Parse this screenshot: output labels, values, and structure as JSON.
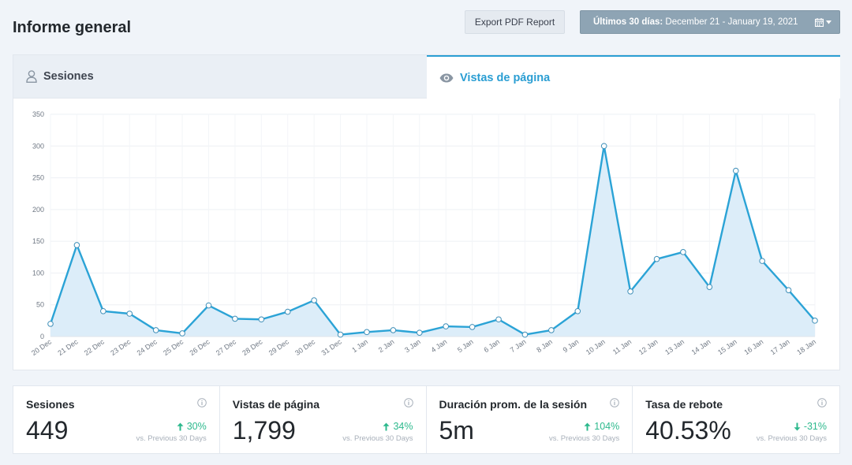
{
  "header": {
    "title": "Informe general",
    "export_label": "Export PDF Report",
    "date_prefix": "Últimos 30 días:",
    "date_range": "December 21 - January 19, 2021"
  },
  "tabs": [
    {
      "label": "Sesiones",
      "icon": "user-icon",
      "active": false
    },
    {
      "label": "Vistas de página",
      "icon": "eye-icon",
      "active": true
    }
  ],
  "colors": {
    "accent": "#2a9ed3",
    "line": "#2ba3d6",
    "area": "#dcedf9",
    "positive": "#2db98d"
  },
  "chart_data": {
    "type": "area",
    "title": "",
    "xlabel": "",
    "ylabel": "",
    "ylim": [
      0,
      350
    ],
    "yticks": [
      0,
      50,
      100,
      150,
      200,
      250,
      300,
      350
    ],
    "grid": true,
    "categories": [
      "20 Dec",
      "21 Dec",
      "22 Dec",
      "23 Dec",
      "24 Dec",
      "25 Dec",
      "26 Dec",
      "27 Dec",
      "28 Dec",
      "29 Dec",
      "30 Dec",
      "31 Dec",
      "1 Jan",
      "2 Jan",
      "3 Jan",
      "4 Jan",
      "5 Jan",
      "6 Jan",
      "7 Jan",
      "8 Jan",
      "9 Jan",
      "10 Jan",
      "11 Jan",
      "12 Jan",
      "13 Jan",
      "14 Jan",
      "15 Jan",
      "16 Jan",
      "17 Jan",
      "18 Jan"
    ],
    "series": [
      {
        "values": [
          20,
          144,
          40,
          36,
          10,
          5,
          49,
          28,
          27,
          39,
          57,
          3,
          7,
          10,
          6,
          16,
          15,
          27,
          3,
          10,
          40,
          300,
          71,
          122,
          133,
          78,
          261,
          119,
          73,
          25
        ]
      }
    ]
  },
  "stats": [
    {
      "label": "Sesiones",
      "value": "449",
      "change": "30%",
      "direction": "up",
      "vs": "vs. Previous 30 Days"
    },
    {
      "label": "Vistas de página",
      "value": "1,799",
      "change": "34%",
      "direction": "up",
      "vs": "vs. Previous 30 Days"
    },
    {
      "label": "Duración prom. de la sesión",
      "value": "5m",
      "change": "104%",
      "direction": "up",
      "vs": "vs. Previous 30 Days"
    },
    {
      "label": "Tasa de rebote",
      "value": "40.53%",
      "change": "-31%",
      "direction": "down",
      "vs": "vs. Previous 30 Days"
    }
  ]
}
